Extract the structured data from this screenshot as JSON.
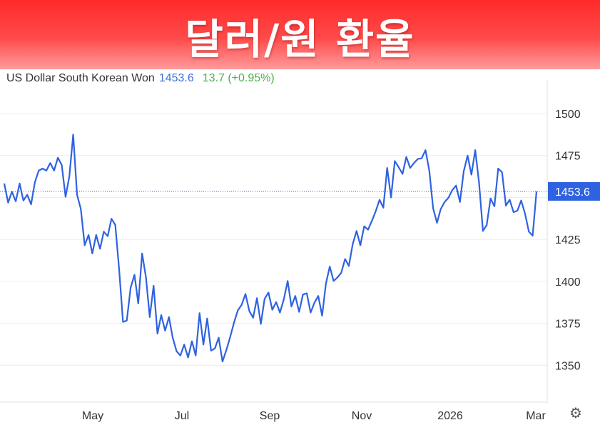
{
  "banner": {
    "title": "달러/원 환율"
  },
  "header": {
    "series_name": "US Dollar South Korean Won",
    "last_value": "1453.6",
    "change": "13.7 (+0.95%)"
  },
  "colors": {
    "line": "#2f62e0",
    "banner_top": "#ff2a2a",
    "banner_bottom": "#ff9a9a",
    "change": "#4caf50",
    "price_label_bg": "#2f62e0"
  },
  "icons": {
    "settings": "gear-icon"
  },
  "chart_data": {
    "type": "line",
    "title": "",
    "xlabel": "",
    "ylabel": "",
    "x_ticks": [
      "May",
      "Jul",
      "Sep",
      "Nov",
      "2026",
      "Mar"
    ],
    "y_ticks": [
      1350,
      1375,
      1400,
      1425,
      1450,
      1475,
      1500
    ],
    "y_tick_labels": [
      "1350",
      "1375",
      "1400",
      "1425",
      "1475",
      "1500"
    ],
    "ylim": [
      1328,
      1520
    ],
    "axis_position": "right",
    "grid": true,
    "last_value": 1453.6,
    "last_value_label": "1453.6",
    "series": [
      {
        "values": [
          1458.3,
          1446.9,
          1453.4,
          1447.7,
          1458.3,
          1448.2,
          1451.6,
          1445.9,
          1459.1,
          1466.0,
          1467.2,
          1466.0,
          1470.5,
          1466.0,
          1473.7,
          1469.4,
          1450.4,
          1462.6,
          1487.5,
          1451.6,
          1443.1,
          1421.5,
          1427.6,
          1416.6,
          1427.6,
          1419.4,
          1429.6,
          1426.9,
          1437.3,
          1433.6,
          1407.0,
          1375.8,
          1376.6,
          1396.2,
          1403.9,
          1386.8,
          1416.6,
          1402.3,
          1378.7,
          1397.4,
          1368.8,
          1379.9,
          1370.6,
          1378.7,
          1366.4,
          1358.3,
          1355.8,
          1362.3,
          1354.6,
          1364.3,
          1355.8,
          1381.1,
          1362.3,
          1377.9,
          1358.7,
          1360.0,
          1366.4,
          1352.2,
          1359.1,
          1366.8,
          1375.4,
          1382.7,
          1386.0,
          1392.5,
          1382.3,
          1378.3,
          1390.0,
          1374.6,
          1389.6,
          1393.3,
          1383.1,
          1387.6,
          1381.4,
          1389.2,
          1400.2,
          1385.0,
          1391.3,
          1381.8,
          1392.1,
          1392.9,
          1381.4,
          1387.2,
          1391.3,
          1379.5,
          1398.6,
          1408.8,
          1400.2,
          1402.3,
          1405.1,
          1413.3,
          1409.2,
          1422.2,
          1430.0,
          1421.5,
          1432.8,
          1430.8,
          1436.0,
          1441.7,
          1448.6,
          1443.9,
          1467.6,
          1450.0,
          1471.7,
          1468.0,
          1464.0,
          1474.1,
          1467.6,
          1470.5,
          1472.9,
          1473.3,
          1478.2,
          1466.0,
          1443.5,
          1434.9,
          1443.1,
          1447.3,
          1449.8,
          1454.3,
          1457.1,
          1447.3,
          1465.6,
          1474.9,
          1463.6,
          1478.2,
          1458.7,
          1430.0,
          1433.6,
          1449.4,
          1444.7,
          1467.2,
          1465.0,
          1445.1,
          1448.6,
          1441.3,
          1442.1,
          1448.2,
          1440.4,
          1429.6,
          1427.2,
          1453.6
        ]
      }
    ]
  }
}
